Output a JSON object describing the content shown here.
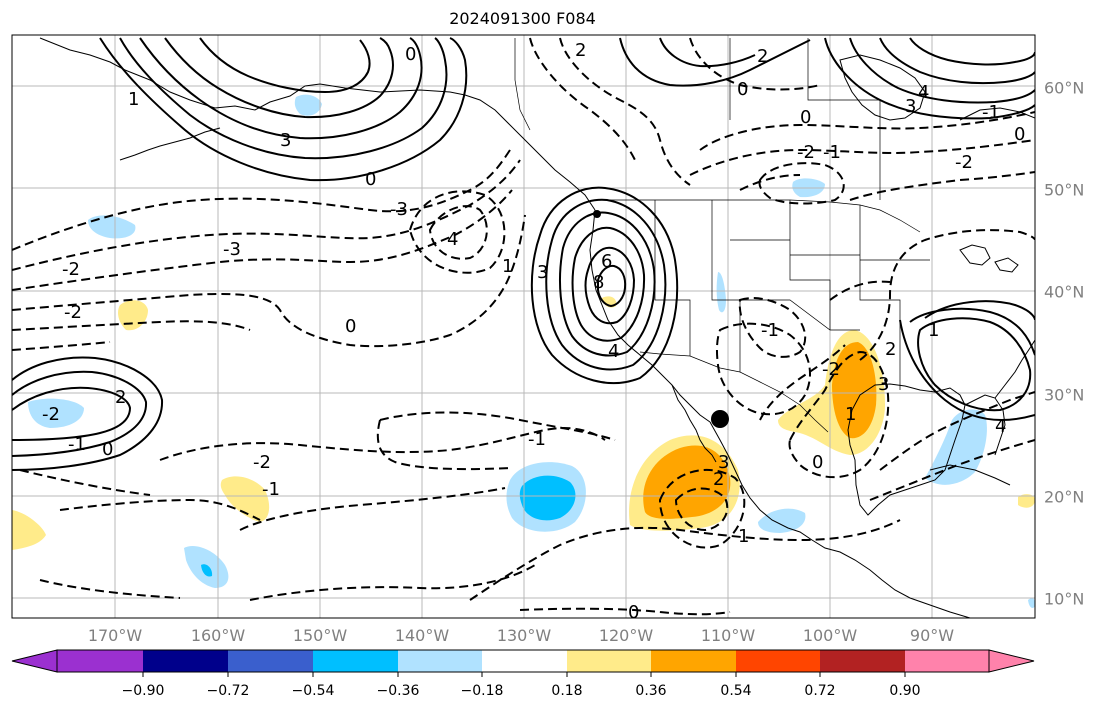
{
  "title": "2024091300 F084",
  "lon_labels": [
    "170°W",
    "160°W",
    "150°W",
    "140°W",
    "130°W",
    "120°W",
    "110°W",
    "100°W",
    "90°W"
  ],
  "lat_labels": [
    "60°N",
    "50°N",
    "40°N",
    "30°N",
    "20°N",
    "10°N"
  ],
  "colorbar": {
    "colors": [
      "#9b30d0",
      "#00008b",
      "#3a5fcd",
      "#00bfff",
      "#b0e2ff",
      "#ffffff",
      "#ffeb8a",
      "#ffa500",
      "#ff4500",
      "#b22222",
      "#ff82ab"
    ],
    "tick_labels": [
      "−0.90",
      "−0.72",
      "−0.54",
      "−0.36",
      "−0.18",
      "0.18",
      "0.36",
      "0.54",
      "0.72",
      "0.90"
    ]
  },
  "contour_labels": [
    "2",
    "2",
    "0",
    "1",
    "3",
    "0",
    "4",
    "3",
    "-3",
    "4",
    "-3",
    "-2",
    "0",
    "-2",
    "-1",
    "-2",
    "0",
    "6",
    "8",
    "3",
    "4",
    "1",
    "-1",
    "2",
    "-2",
    "0",
    "-2",
    "-1",
    "-1",
    "1",
    "3",
    "2",
    "1",
    "0",
    "4",
    "3",
    "1",
    "2",
    "-2",
    "0",
    "-1",
    "-2",
    "-1",
    "0",
    "0"
  ]
}
